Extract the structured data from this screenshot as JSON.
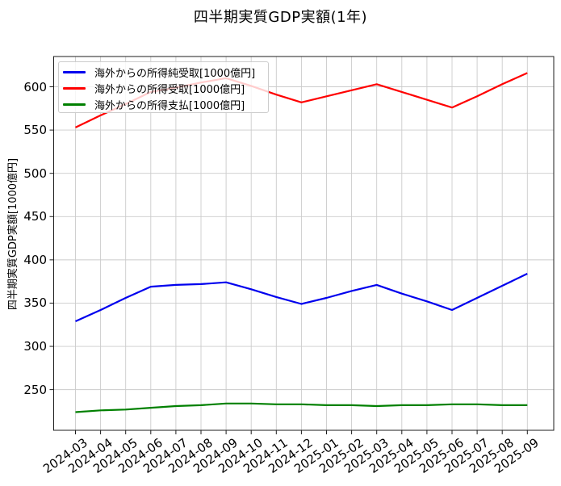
{
  "chart_data": {
    "type": "line",
    "title": "四半期実質GDP実額(1年)",
    "xlabel": "",
    "ylabel": "四半期実質GDP実額[1000億円]",
    "grid": true,
    "legend_position": "upper left",
    "x_tick_rotation": 35,
    "ylim": [
      203,
      635
    ],
    "y_ticks": [
      250,
      300,
      350,
      400,
      450,
      500,
      550,
      600
    ],
    "categories": [
      "2024-03",
      "2024-04",
      "2024-05",
      "2024-06",
      "2024-07",
      "2024-08",
      "2024-09",
      "2024-10",
      "2024-11",
      "2024-12",
      "2025-01",
      "2025-02",
      "2025-03",
      "2025-04",
      "2025-05",
      "2025-06",
      "2025-07",
      "2025-08",
      "2025-09"
    ],
    "series": [
      {
        "name": "海外からの所得純受取[1000億円]",
        "color": "#0000ee",
        "values": [
          329,
          342,
          356,
          369,
          371,
          372,
          374,
          366,
          357,
          349,
          356,
          364,
          371,
          361,
          352,
          342,
          356,
          370,
          384
        ]
      },
      {
        "name": "海外からの所得受取[1000億円]",
        "color": "#ff0000",
        "values": [
          553,
          567,
          580,
          594,
          599,
          605,
          610,
          601,
          591,
          582,
          589,
          596,
          603,
          594,
          585,
          576,
          589,
          603,
          616
        ]
      },
      {
        "name": "海外からの所得支払[1000億円]",
        "color": "#008000",
        "values": [
          224,
          226,
          227,
          229,
          231,
          232,
          234,
          234,
          233,
          233,
          232,
          232,
          231,
          232,
          232,
          233,
          233,
          232,
          232
        ]
      }
    ],
    "colors": {
      "gridline": "#cbcbcb",
      "spine": "#1c1c1c",
      "background": "#ffffff"
    }
  }
}
